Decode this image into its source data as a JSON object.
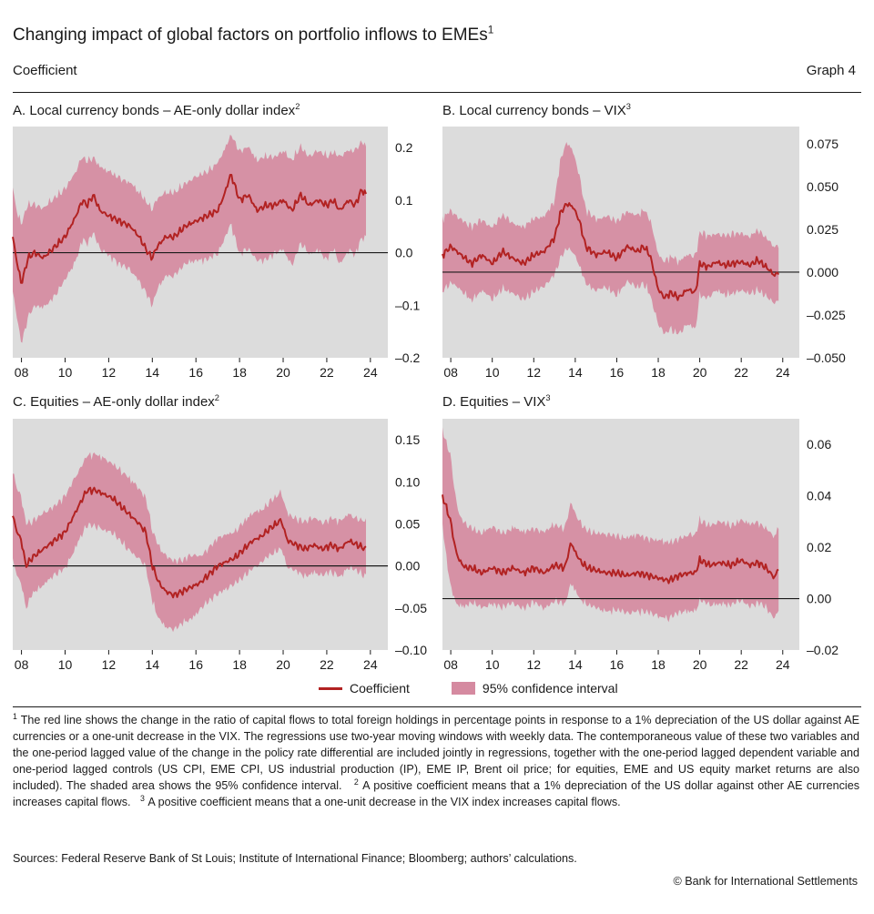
{
  "header": {
    "title": "Changing impact of global factors on portfolio inflows to EMEs",
    "title_sup": "1",
    "subtitle": "Coefficient",
    "graph_no": "Graph 4"
  },
  "colors": {
    "line": "#b22222",
    "band": "#d58aa0",
    "plot_bg": "#dcdcdc",
    "zero": "#1a1a1a"
  },
  "chart_data": [
    {
      "id": "A",
      "type": "line",
      "title": "A. Local currency bonds – AE-only dollar index",
      "title_sup": "2",
      "ylim": [
        -0.2,
        0.24
      ],
      "yticks": [
        -0.2,
        -0.1,
        0.0,
        0.1,
        0.2
      ],
      "ytick_labels": [
        "–0.2",
        "–0.1",
        "0.0",
        "0.1",
        "0.2"
      ],
      "xlim": [
        2007.6,
        2024.8
      ],
      "xticks": [
        "08",
        "10",
        "12",
        "14",
        "16",
        "18",
        "20",
        "22",
        "24"
      ],
      "end": 2023.8,
      "series": [
        {
          "x": [
            2007.6,
            2007.8,
            2008.0,
            2008.3,
            2008.6,
            2009.0,
            2009.5,
            2010.0,
            2010.5,
            2010.8,
            2011.0,
            2011.3,
            2011.6,
            2012.0,
            2012.5,
            2013.0,
            2013.4,
            2013.8,
            2014.0,
            2014.2,
            2014.6,
            2015.0,
            2015.5,
            2016.0,
            2016.5,
            2017.0,
            2017.3,
            2017.6,
            2018.0,
            2018.4,
            2018.8,
            2019.2,
            2019.6,
            2020.0,
            2020.4,
            2020.8,
            2021.2,
            2021.6,
            2022.0,
            2022.3,
            2022.6,
            2023.0,
            2023.3,
            2023.6,
            2023.8
          ],
          "y": [
            0.03,
            -0.02,
            -0.06,
            -0.01,
            0.0,
            -0.01,
            0.01,
            0.03,
            0.07,
            0.1,
            0.09,
            0.11,
            0.08,
            0.07,
            0.06,
            0.05,
            0.03,
            0.0,
            -0.01,
            0.01,
            0.03,
            0.03,
            0.05,
            0.06,
            0.07,
            0.08,
            0.11,
            0.15,
            0.1,
            0.11,
            0.08,
            0.09,
            0.09,
            0.1,
            0.08,
            0.11,
            0.09,
            0.1,
            0.09,
            0.1,
            0.08,
            0.1,
            0.09,
            0.12,
            0.11
          ],
          "lower": [
            -0.07,
            -0.12,
            -0.17,
            -0.12,
            -0.1,
            -0.1,
            -0.08,
            -0.05,
            -0.01,
            0.03,
            0.02,
            0.04,
            0.01,
            0.0,
            -0.02,
            -0.03,
            -0.05,
            -0.08,
            -0.1,
            -0.07,
            -0.04,
            -0.04,
            -0.02,
            -0.01,
            -0.01,
            0.0,
            0.03,
            0.06,
            0.0,
            0.01,
            -0.01,
            -0.01,
            0.0,
            0.01,
            -0.02,
            0.02,
            0.0,
            0.01,
            -0.01,
            0.01,
            -0.02,
            0.01,
            0.0,
            0.03,
            0.03
          ],
          "upper": [
            0.12,
            0.07,
            0.05,
            0.09,
            0.09,
            0.08,
            0.1,
            0.12,
            0.15,
            0.18,
            0.17,
            0.18,
            0.16,
            0.15,
            0.14,
            0.13,
            0.11,
            0.09,
            0.08,
            0.1,
            0.11,
            0.11,
            0.13,
            0.14,
            0.15,
            0.17,
            0.19,
            0.22,
            0.19,
            0.2,
            0.17,
            0.18,
            0.18,
            0.19,
            0.17,
            0.2,
            0.18,
            0.19,
            0.18,
            0.19,
            0.18,
            0.19,
            0.19,
            0.21,
            0.2
          ]
        }
      ]
    },
    {
      "id": "B",
      "type": "line",
      "title": "B. Local currency bonds – VIX",
      "title_sup": "3",
      "ylim": [
        -0.05,
        0.085
      ],
      "yticks": [
        -0.05,
        -0.025,
        0.0,
        0.025,
        0.05,
        0.075
      ],
      "ytick_labels": [
        "–0.050",
        "–0.025",
        "0.000",
        "0.025",
        "0.050",
        "0.075"
      ],
      "xlim": [
        2007.6,
        2024.8
      ],
      "xticks": [
        "08",
        "10",
        "12",
        "14",
        "16",
        "18",
        "20",
        "22",
        "24"
      ],
      "end": 2023.8,
      "series": [
        {
          "x": [
            2007.6,
            2008.0,
            2008.5,
            2009.0,
            2009.5,
            2010.0,
            2010.5,
            2011.0,
            2011.5,
            2012.0,
            2012.5,
            2013.0,
            2013.3,
            2013.6,
            2013.9,
            2014.2,
            2014.5,
            2015.0,
            2015.5,
            2016.0,
            2016.5,
            2017.0,
            2017.3,
            2017.6,
            2018.0,
            2018.3,
            2018.6,
            2019.0,
            2019.4,
            2019.8,
            2020.0,
            2020.4,
            2020.8,
            2021.2,
            2021.6,
            2022.0,
            2022.4,
            2022.8,
            2023.0,
            2023.3,
            2023.6,
            2023.8
          ],
          "y": [
            0.01,
            0.015,
            0.01,
            0.005,
            0.01,
            0.005,
            0.012,
            0.008,
            0.005,
            0.01,
            0.012,
            0.02,
            0.035,
            0.04,
            0.038,
            0.03,
            0.015,
            0.01,
            0.012,
            0.008,
            0.015,
            0.012,
            0.015,
            0.01,
            -0.01,
            -0.015,
            -0.012,
            -0.015,
            -0.01,
            -0.012,
            0.005,
            0.003,
            0.006,
            0.004,
            0.005,
            0.006,
            0.004,
            0.007,
            0.005,
            0.002,
            -0.002,
            0.0
          ],
          "lower": [
            -0.01,
            -0.005,
            -0.01,
            -0.015,
            -0.01,
            -0.015,
            -0.008,
            -0.012,
            -0.015,
            -0.01,
            -0.008,
            0.0,
            0.01,
            0.015,
            0.012,
            0.005,
            -0.005,
            -0.01,
            -0.008,
            -0.012,
            -0.005,
            -0.008,
            -0.005,
            -0.012,
            -0.03,
            -0.035,
            -0.032,
            -0.035,
            -0.03,
            -0.032,
            -0.012,
            -0.014,
            -0.01,
            -0.012,
            -0.011,
            -0.01,
            -0.012,
            -0.009,
            -0.011,
            -0.014,
            -0.018,
            -0.015
          ],
          "upper": [
            0.03,
            0.035,
            0.03,
            0.025,
            0.03,
            0.025,
            0.032,
            0.028,
            0.025,
            0.03,
            0.032,
            0.04,
            0.065,
            0.075,
            0.07,
            0.055,
            0.035,
            0.03,
            0.032,
            0.028,
            0.035,
            0.032,
            0.035,
            0.03,
            0.01,
            0.005,
            0.008,
            0.005,
            0.01,
            0.008,
            0.022,
            0.02,
            0.022,
            0.02,
            0.021,
            0.022,
            0.02,
            0.023,
            0.021,
            0.018,
            0.014,
            0.015
          ]
        }
      ]
    },
    {
      "id": "C",
      "type": "line",
      "title": "C. Equities – AE-only dollar index",
      "title_sup": "2",
      "ylim": [
        -0.1,
        0.175
      ],
      "yticks": [
        -0.1,
        -0.05,
        0.0,
        0.05,
        0.1,
        0.15
      ],
      "ytick_labels": [
        "–0.10",
        "–0.05",
        "0.00",
        "0.05",
        "0.10",
        "0.15"
      ],
      "xlim": [
        2007.6,
        2024.8
      ],
      "xticks": [
        "08",
        "10",
        "12",
        "14",
        "16",
        "18",
        "20",
        "22",
        "24"
      ],
      "end": 2023.8,
      "series": [
        {
          "x": [
            2007.6,
            2007.8,
            2008.0,
            2008.2,
            2008.5,
            2009.0,
            2009.5,
            2010.0,
            2010.4,
            2010.8,
            2011.0,
            2011.4,
            2011.8,
            2012.2,
            2012.6,
            2013.0,
            2013.4,
            2013.7,
            2014.0,
            2014.3,
            2014.6,
            2015.0,
            2015.4,
            2015.8,
            2016.2,
            2016.6,
            2017.0,
            2017.4,
            2017.8,
            2018.2,
            2018.6,
            2019.0,
            2019.4,
            2019.7,
            2019.9,
            2020.2,
            2020.6,
            2021.0,
            2021.4,
            2021.8,
            2022.2,
            2022.6,
            2023.0,
            2023.4,
            2023.8
          ],
          "y": [
            0.06,
            0.04,
            0.03,
            0.0,
            0.01,
            0.02,
            0.03,
            0.04,
            0.06,
            0.08,
            0.09,
            0.09,
            0.085,
            0.08,
            0.07,
            0.06,
            0.05,
            0.04,
            0.0,
            -0.02,
            -0.03,
            -0.035,
            -0.03,
            -0.025,
            -0.02,
            -0.01,
            0.0,
            0.005,
            0.01,
            0.02,
            0.03,
            0.035,
            0.045,
            0.05,
            0.055,
            0.03,
            0.025,
            0.02,
            0.025,
            0.02,
            0.025,
            0.02,
            0.03,
            0.025,
            0.02
          ],
          "lower": [
            0.01,
            -0.01,
            -0.02,
            -0.05,
            -0.03,
            -0.02,
            -0.01,
            0.0,
            0.02,
            0.04,
            0.05,
            0.05,
            0.045,
            0.04,
            0.03,
            0.02,
            0.01,
            0.0,
            -0.04,
            -0.06,
            -0.07,
            -0.075,
            -0.065,
            -0.06,
            -0.05,
            -0.04,
            -0.03,
            -0.025,
            -0.02,
            -0.01,
            0.0,
            0.005,
            0.015,
            0.02,
            0.025,
            0.0,
            -0.005,
            -0.01,
            -0.005,
            -0.01,
            -0.005,
            -0.01,
            0.0,
            -0.005,
            -0.01
          ],
          "upper": [
            0.11,
            0.09,
            0.08,
            0.05,
            0.05,
            0.06,
            0.07,
            0.08,
            0.1,
            0.12,
            0.13,
            0.13,
            0.125,
            0.12,
            0.11,
            0.1,
            0.09,
            0.08,
            0.04,
            0.02,
            0.01,
            0.005,
            0.005,
            0.01,
            0.01,
            0.02,
            0.03,
            0.035,
            0.04,
            0.05,
            0.06,
            0.065,
            0.075,
            0.08,
            0.085,
            0.06,
            0.055,
            0.05,
            0.055,
            0.05,
            0.055,
            0.05,
            0.06,
            0.055,
            0.05
          ]
        }
      ]
    },
    {
      "id": "D",
      "type": "line",
      "title": "D. Equities – VIX",
      "title_sup": "3",
      "ylim": [
        -0.02,
        0.07
      ],
      "yticks": [
        -0.02,
        0.0,
        0.02,
        0.04,
        0.06
      ],
      "ytick_labels": [
        "–0.02",
        "0.00",
        "0.02",
        "0.04",
        "0.06"
      ],
      "xlim": [
        2007.6,
        2024.8
      ],
      "xticks": [
        "08",
        "10",
        "12",
        "14",
        "16",
        "18",
        "20",
        "22",
        "24"
      ],
      "end": 2023.8,
      "series": [
        {
          "x": [
            2007.6,
            2007.8,
            2008.0,
            2008.2,
            2008.4,
            2008.7,
            2009.0,
            2009.5,
            2010.0,
            2010.5,
            2011.0,
            2011.5,
            2012.0,
            2012.5,
            2013.0,
            2013.5,
            2013.8,
            2014.0,
            2014.3,
            2014.6,
            2015.0,
            2015.5,
            2016.0,
            2016.5,
            2017.0,
            2017.5,
            2018.0,
            2018.5,
            2019.0,
            2019.5,
            2019.8,
            2020.0,
            2020.5,
            2021.0,
            2021.5,
            2022.0,
            2022.4,
            2022.8,
            2023.2,
            2023.6,
            2023.8
          ],
          "y": [
            0.04,
            0.035,
            0.03,
            0.02,
            0.015,
            0.012,
            0.012,
            0.01,
            0.012,
            0.01,
            0.012,
            0.01,
            0.012,
            0.01,
            0.013,
            0.012,
            0.022,
            0.018,
            0.014,
            0.012,
            0.011,
            0.01,
            0.01,
            0.009,
            0.01,
            0.009,
            0.008,
            0.007,
            0.009,
            0.01,
            0.01,
            0.015,
            0.013,
            0.014,
            0.013,
            0.015,
            0.013,
            0.014,
            0.012,
            0.008,
            0.012
          ],
          "lower": [
            0.03,
            0.015,
            0.005,
            0.0,
            -0.002,
            -0.002,
            -0.001,
            -0.003,
            -0.001,
            -0.003,
            -0.001,
            -0.003,
            -0.001,
            -0.003,
            0.0,
            -0.002,
            0.007,
            0.004,
            0.0,
            -0.002,
            -0.003,
            -0.004,
            -0.004,
            -0.005,
            -0.004,
            -0.005,
            -0.006,
            -0.007,
            -0.005,
            -0.004,
            -0.004,
            0.0,
            -0.002,
            -0.001,
            -0.002,
            0.0,
            -0.002,
            -0.001,
            -0.003,
            -0.007,
            -0.003
          ],
          "upper": [
            0.065,
            0.06,
            0.055,
            0.04,
            0.032,
            0.028,
            0.027,
            0.025,
            0.027,
            0.025,
            0.027,
            0.025,
            0.027,
            0.025,
            0.028,
            0.027,
            0.037,
            0.032,
            0.028,
            0.026,
            0.025,
            0.024,
            0.024,
            0.023,
            0.024,
            0.023,
            0.022,
            0.021,
            0.023,
            0.024,
            0.024,
            0.03,
            0.028,
            0.029,
            0.028,
            0.03,
            0.028,
            0.029,
            0.027,
            0.023,
            0.027
          ]
        }
      ]
    }
  ],
  "legend": {
    "line_label": "Coefficient",
    "band_label": "95% confidence interval"
  },
  "footnotes": {
    "n1_mark": "1",
    "n1": "The red line shows the change in the ratio of capital flows to total foreign holdings in percentage points in response to a 1% depreciation of the US dollar against AE currencies or a one-unit decrease in the VIX. The regressions use two-year moving windows with weekly data. The contemporaneous value of these two variables and the one-period lagged value of the change in the policy rate differential are included jointly in regressions, together with the one-period lagged dependent variable and one-period lagged controls (US CPI, EME CPI, US industrial production (IP), EME IP, Brent oil price; for equities, EME and US equity market returns are also included). The shaded area shows the 95% confidence interval.",
    "n2_mark": "2",
    "n2": "A positive coefficient means that a 1% depreciation of the US dollar against other AE currencies increases capital flows.",
    "n3_mark": "3",
    "n3": "A positive coefficient means that a one-unit decrease in the VIX index increases capital flows."
  },
  "sources": "Sources: Federal Reserve Bank of St Louis; Institute of International Finance; Bloomberg; authors’ calculations.",
  "copyright": "© Bank for International Settlements"
}
